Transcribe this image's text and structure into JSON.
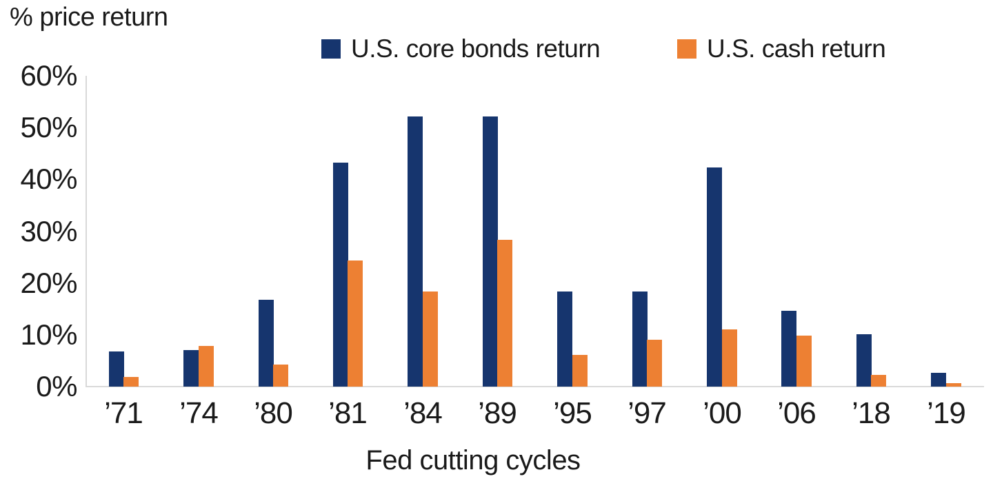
{
  "chart_data": {
    "type": "bar",
    "title": "% price return",
    "xlabel": "Fed cutting cycles",
    "ylabel": "",
    "categories": [
      "’71",
      "’74",
      "’80",
      "’81",
      "’84",
      "’89",
      "’95",
      "’97",
      "’00",
      "’06",
      "’18",
      "’19"
    ],
    "series": [
      {
        "name": "U.S. core bonds return",
        "color": "#16356E",
        "values": [
          6.8,
          7.1,
          16.8,
          43.3,
          52.1,
          52.1,
          18.3,
          18.3,
          42.3,
          14.7,
          10.1,
          2.6
        ]
      },
      {
        "name": "U.S. cash return",
        "color": "#ED8033",
        "values": [
          1.8,
          7.9,
          4.3,
          24.4,
          18.3,
          28.3,
          6.1,
          9.1,
          11.1,
          9.8,
          2.3,
          0.7
        ]
      }
    ],
    "ylim": [
      0,
      60
    ],
    "y_tick_labels": [
      "0%",
      "10%",
      "20%",
      "30%",
      "40%",
      "50%",
      "60%"
    ],
    "grid": false,
    "legend_position": "top",
    "axis_line_color": "#D9D9D9",
    "text_color": "#1A1A1A",
    "background_color": "#FFFFFF"
  }
}
